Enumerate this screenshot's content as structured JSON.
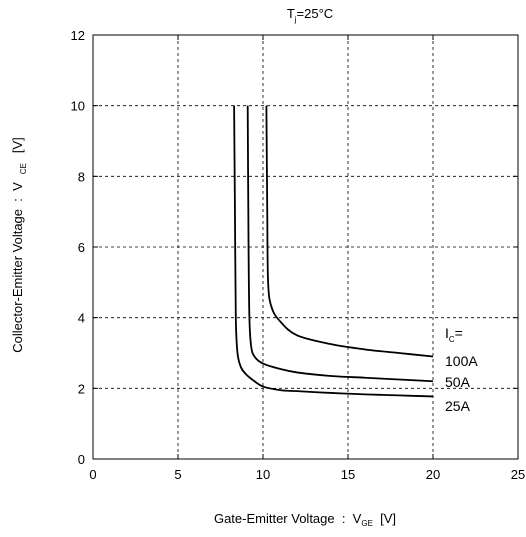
{
  "chart_data": {
    "type": "line",
    "title": {
      "main": "T",
      "sub": "j",
      "rest": "=25°C"
    },
    "xlabel": {
      "main": "Gate-Emitter Voltage  :  V",
      "sub": "GE",
      "rest": "  [V]"
    },
    "ylabel": {
      "main": "Collector-Emitter Voltage  :  V",
      "sub": "CE",
      "rest": "[V]"
    },
    "xlim": [
      0,
      25
    ],
    "ylim": [
      0,
      12
    ],
    "x_ticks": [
      0,
      5,
      10,
      15,
      20,
      25
    ],
    "y_ticks": [
      0,
      2,
      4,
      6,
      8,
      10,
      12
    ],
    "x_tick_labels": [
      "0",
      "5",
      "10",
      "15",
      "20",
      "25"
    ],
    "y_tick_labels": [
      "0",
      "2",
      "4",
      "6",
      "8",
      "10",
      "12"
    ],
    "grid": "dashed",
    "series": [
      {
        "name": "25A",
        "x": [
          8.3,
          8.35,
          8.4,
          8.5,
          8.7,
          9.0,
          9.5,
          10.0,
          11.0,
          12.0,
          14.0,
          16.0,
          18.0,
          20.0
        ],
        "y": [
          10.0,
          7.0,
          4.0,
          3.0,
          2.6,
          2.4,
          2.2,
          2.05,
          1.95,
          1.92,
          1.87,
          1.83,
          1.8,
          1.77
        ]
      },
      {
        "name": "50A",
        "x": [
          9.1,
          9.15,
          9.2,
          9.3,
          9.5,
          10.0,
          11.0,
          12.0,
          14.0,
          16.0,
          18.0,
          20.0
        ],
        "y": [
          10.0,
          6.0,
          4.0,
          3.2,
          2.9,
          2.7,
          2.55,
          2.45,
          2.35,
          2.3,
          2.25,
          2.2
        ]
      },
      {
        "name": "100A",
        "x": [
          10.2,
          10.25,
          10.3,
          10.5,
          11.0,
          12.0,
          14.0,
          16.0,
          18.0,
          20.0
        ],
        "y": [
          10.0,
          7.0,
          5.0,
          4.3,
          3.9,
          3.5,
          3.25,
          3.1,
          3.0,
          2.9
        ]
      }
    ],
    "annotations": {
      "ic_label": {
        "main": "I",
        "sub": "C",
        "rest": "="
      },
      "labels": [
        "100A",
        "50A",
        "25A"
      ]
    }
  }
}
